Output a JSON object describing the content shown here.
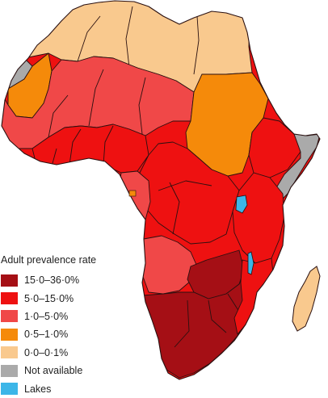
{
  "legend": {
    "title": "Adult prevalence rate",
    "items": [
      {
        "label": "15·0–36·0%",
        "color": "#a50f15"
      },
      {
        "label": "5·0–15·0%",
        "color": "#ee1111"
      },
      {
        "label": "1·0–5·0%",
        "color": "#f04848"
      },
      {
        "label": "0·5–1·0%",
        "color": "#f58a0a"
      },
      {
        "label": "0·0–0·1%",
        "color": "#f9c98e"
      },
      {
        "label": "Not available",
        "color": "#aaaaaa"
      },
      {
        "label": "Lakes",
        "color": "#3cb6e8"
      }
    ]
  }
}
